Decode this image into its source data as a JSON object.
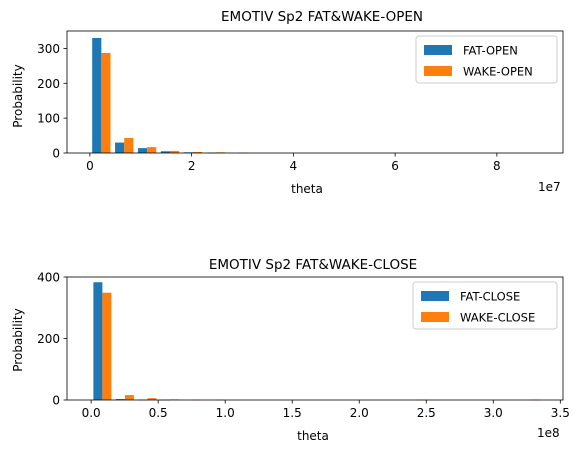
{
  "chart_data": [
    {
      "type": "bar",
      "title": "EMOTIV Sp2 FAT&WAKE-OPEN",
      "xlabel": "theta",
      "ylabel": "Probability",
      "offset_text": "1e7",
      "xlim": [
        -4.5,
        93
      ],
      "ylim": [
        0,
        350
      ],
      "legend_position": "upper right",
      "xticks": [
        0,
        20,
        40,
        60,
        80
      ],
      "xtick_labels": [
        "0",
        "2",
        "4",
        "6",
        "8"
      ],
      "yticks": [
        0,
        100,
        200,
        300
      ],
      "ytick_labels": [
        "0",
        "100",
        "200",
        "300"
      ],
      "bin_width": 4.5,
      "bin_starts": [
        0,
        4.5,
        9,
        13.5,
        18,
        22.5,
        27,
        31.5,
        36,
        40.5,
        45,
        49.5,
        54,
        58.5,
        63,
        67.5,
        72,
        76.5,
        81,
        85.5
      ],
      "series": [
        {
          "name": "FAT-OPEN",
          "color": "#1f77b4",
          "values": [
            330,
            30,
            14,
            5,
            2,
            1,
            0,
            0,
            0,
            0,
            0,
            0,
            0,
            0,
            0,
            0,
            0,
            0,
            0,
            0
          ]
        },
        {
          "name": "WAKE-OPEN",
          "color": "#ff7f0e",
          "values": [
            287,
            43,
            17,
            6,
            3,
            2,
            1,
            0,
            0,
            0,
            0,
            0,
            0,
            0,
            0,
            0,
            0,
            0,
            0,
            0
          ]
        }
      ]
    },
    {
      "type": "bar",
      "title": "EMOTIV Sp2 FAT&WAKE-CLOSE",
      "xlabel": "theta",
      "ylabel": "Probability",
      "offset_text": "1e8",
      "xlim": [
        -1.8,
        35.2
      ],
      "ylim": [
        0,
        400
      ],
      "legend_position": "upper right",
      "xticks": [
        0,
        5,
        10,
        15,
        20,
        25,
        30,
        35
      ],
      "xtick_labels": [
        "0.0",
        "0.5",
        "1.0",
        "1.5",
        "2.0",
        "2.5",
        "3.0",
        "3.5"
      ],
      "yticks": [
        0,
        200,
        400
      ],
      "ytick_labels": [
        "0",
        "200",
        "400"
      ],
      "bin_width": 1.68,
      "bin_starts": [
        0,
        1.68,
        3.36,
        5.04,
        6.72,
        8.4,
        10.08,
        11.76,
        13.44,
        15.12,
        16.8,
        18.48,
        20.16,
        21.84,
        23.52,
        25.2,
        26.88,
        28.56,
        30.24,
        31.92
      ],
      "series": [
        {
          "name": "FAT-CLOSE",
          "color": "#1f77b4",
          "values": [
            383,
            3,
            1,
            1,
            0,
            0,
            0,
            0,
            0,
            0,
            0,
            0,
            0,
            0,
            0,
            0,
            0,
            0,
            0,
            0
          ]
        },
        {
          "name": "WAKE-CLOSE",
          "color": "#ff7f0e",
          "values": [
            349,
            16,
            6,
            2,
            1,
            1,
            0,
            0,
            0,
            0,
            0,
            0,
            0,
            0,
            1,
            0,
            0,
            0,
            0,
            1
          ]
        }
      ]
    }
  ]
}
